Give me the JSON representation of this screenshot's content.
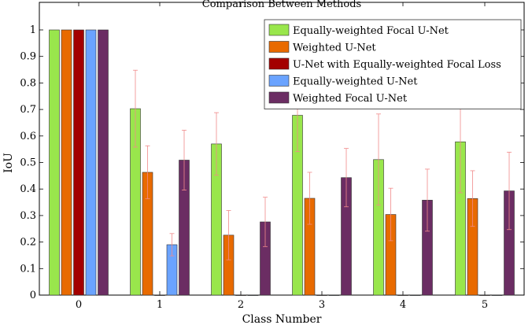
{
  "chart_data": {
    "type": "bar",
    "title": "Comparison Between Methods",
    "xlabel": "Class Number",
    "ylabel": "IoU",
    "ylim": [
      0,
      1.05
    ],
    "yticks": [
      "0",
      "0.1",
      "0.2",
      "0.3",
      "0.4",
      "0.5",
      "0.6",
      "0.7",
      "0.8",
      "0.9",
      "1"
    ],
    "categories": [
      "0",
      "1",
      "2",
      "3",
      "4",
      "5"
    ],
    "grid": false,
    "legend_position": "top-right",
    "series": [
      {
        "name": "Equally-weighted Focal U-Net",
        "color": "#99e64c",
        "values": [
          1.0,
          0.703,
          0.57,
          0.678,
          0.511,
          0.578
        ],
        "errors": [
          0,
          0.145,
          0.118,
          0.137,
          0.172,
          0.192
        ]
      },
      {
        "name": "Weighted U-Net",
        "color": "#e86a00",
        "values": [
          1.0,
          0.463,
          0.226,
          0.365,
          0.304,
          0.364
        ],
        "errors": [
          0,
          0.1,
          0.093,
          0.098,
          0.099,
          0.105
        ]
      },
      {
        "name": "U-Net with Equally-weighted Focal Loss",
        "color": "#a30000",
        "values": [
          1.0,
          0.0,
          0.0,
          0.0,
          0.0,
          0.0
        ],
        "errors": [
          0,
          0,
          0,
          0,
          0,
          0
        ]
      },
      {
        "name": "Equally-weighted U-Net",
        "color": "#6aa3ff",
        "values": [
          1.0,
          0.19,
          0.0,
          0.0,
          0.0,
          0.0
        ],
        "errors": [
          0,
          0.042,
          0,
          0,
          0,
          0
        ]
      },
      {
        "name": "Weighted Focal U-Net",
        "color": "#6b2d63",
        "values": [
          1.0,
          0.509,
          0.276,
          0.443,
          0.358,
          0.393
        ],
        "errors": [
          0,
          0.113,
          0.093,
          0.11,
          0.117,
          0.146
        ]
      }
    ]
  }
}
